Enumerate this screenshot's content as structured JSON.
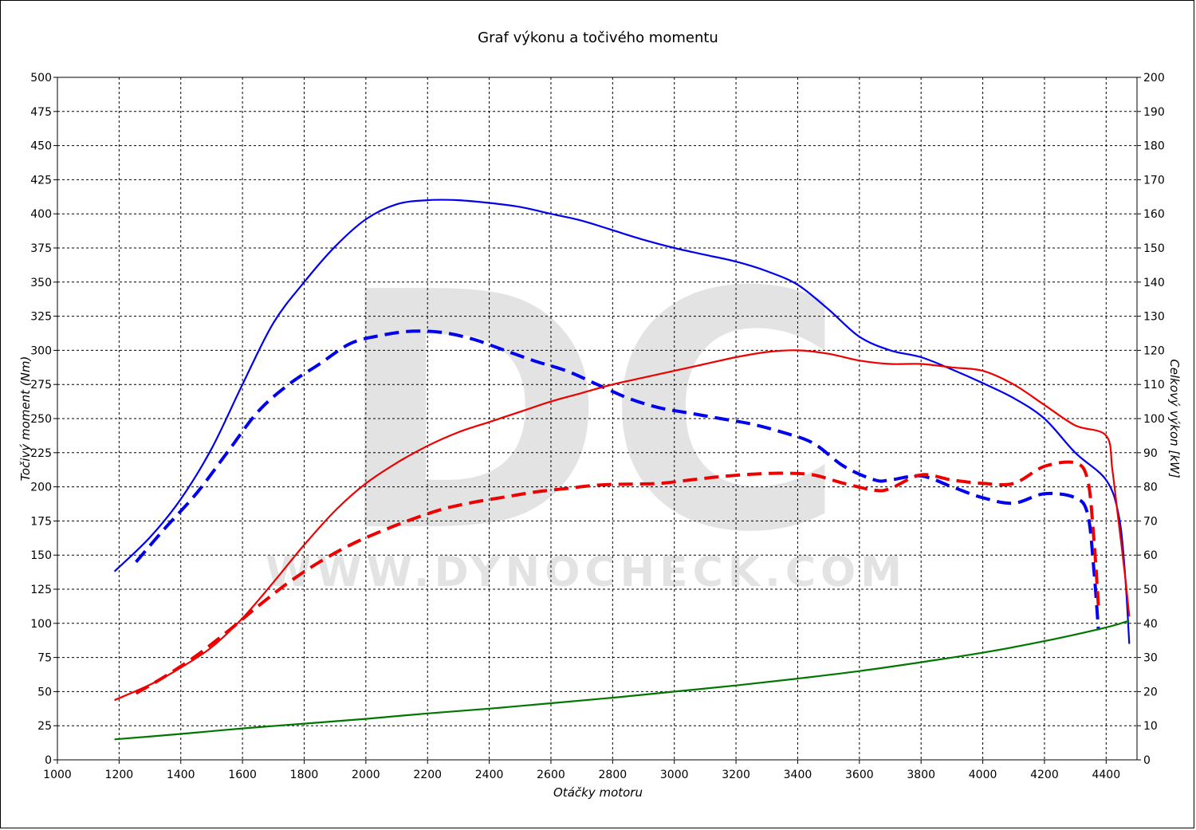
{
  "chart_data": {
    "type": "line",
    "title": "Graf výkonu a točivého momentu",
    "xlabel": "Otáčky motoru",
    "ylabel_left": "Točivý moment (Nm)",
    "ylabel_right": "Celkový výkon [kW]",
    "xlim": [
      1000,
      4500
    ],
    "ylim_left": [
      0,
      500
    ],
    "ylim_right": [
      0,
      200
    ],
    "x_ticks": [
      1000,
      1200,
      1400,
      1600,
      1800,
      2000,
      2200,
      2400,
      2600,
      2800,
      3000,
      3200,
      3400,
      3600,
      3800,
      4000,
      4200,
      4400
    ],
    "y_ticks_left": [
      0,
      25,
      50,
      75,
      100,
      125,
      150,
      175,
      200,
      225,
      250,
      275,
      300,
      325,
      350,
      375,
      400,
      425,
      450,
      475,
      500
    ],
    "y_ticks_right": [
      0,
      10,
      20,
      30,
      40,
      50,
      60,
      70,
      80,
      90,
      100,
      110,
      120,
      130,
      140,
      150,
      160,
      170,
      180,
      190,
      200
    ],
    "grid": true,
    "watermark": {
      "letters": "DC",
      "url": "WWW.DYNOCHECK.COM"
    },
    "series": [
      {
        "axis": "left",
        "color": "#0000ee",
        "dash": "solid",
        "points": [
          [
            1185,
            138
          ],
          [
            1300,
            163
          ],
          [
            1400,
            191
          ],
          [
            1500,
            228
          ],
          [
            1600,
            275
          ],
          [
            1700,
            320
          ],
          [
            1800,
            350
          ],
          [
            1900,
            376
          ],
          [
            2000,
            396
          ],
          [
            2100,
            407
          ],
          [
            2200,
            410
          ],
          [
            2300,
            410
          ],
          [
            2400,
            408
          ],
          [
            2500,
            405
          ],
          [
            2600,
            400
          ],
          [
            2700,
            395
          ],
          [
            2800,
            388
          ],
          [
            2900,
            381
          ],
          [
            3000,
            375
          ],
          [
            3100,
            370
          ],
          [
            3200,
            365
          ],
          [
            3300,
            358
          ],
          [
            3400,
            348
          ],
          [
            3500,
            330
          ],
          [
            3600,
            310
          ],
          [
            3700,
            300
          ],
          [
            3800,
            295
          ],
          [
            3900,
            286
          ],
          [
            4000,
            276
          ],
          [
            4100,
            265
          ],
          [
            4200,
            250
          ],
          [
            4300,
            225
          ],
          [
            4400,
            205
          ],
          [
            4440,
            180
          ],
          [
            4460,
            140
          ],
          [
            4475,
            85
          ]
        ]
      },
      {
        "axis": "left",
        "color": "#0000ee",
        "dash": "dashed",
        "points": [
          [
            1255,
            145
          ],
          [
            1350,
            170
          ],
          [
            1450,
            195
          ],
          [
            1550,
            225
          ],
          [
            1650,
            255
          ],
          [
            1750,
            275
          ],
          [
            1850,
            290
          ],
          [
            1950,
            305
          ],
          [
            2050,
            311
          ],
          [
            2150,
            314
          ],
          [
            2250,
            313
          ],
          [
            2350,
            308
          ],
          [
            2450,
            300
          ],
          [
            2550,
            292
          ],
          [
            2650,
            285
          ],
          [
            2750,
            275
          ],
          [
            2850,
            265
          ],
          [
            2950,
            258
          ],
          [
            3050,
            254
          ],
          [
            3150,
            250
          ],
          [
            3250,
            246
          ],
          [
            3350,
            240
          ],
          [
            3450,
            232
          ],
          [
            3550,
            215
          ],
          [
            3650,
            205
          ],
          [
            3700,
            205
          ],
          [
            3800,
            208
          ],
          [
            3900,
            200
          ],
          [
            4000,
            192
          ],
          [
            4100,
            188
          ],
          [
            4200,
            195
          ],
          [
            4300,
            192
          ],
          [
            4340,
            180
          ],
          [
            4360,
            140
          ],
          [
            4375,
            95
          ]
        ]
      },
      {
        "axis": "right",
        "color": "#ee0000",
        "dash": "solid",
        "points": [
          [
            1185,
            17.5
          ],
          [
            1300,
            22
          ],
          [
            1400,
            27
          ],
          [
            1500,
            33
          ],
          [
            1600,
            41.5
          ],
          [
            1700,
            52
          ],
          [
            1800,
            63
          ],
          [
            1900,
            73
          ],
          [
            2000,
            81
          ],
          [
            2100,
            87
          ],
          [
            2200,
            92
          ],
          [
            2300,
            96
          ],
          [
            2400,
            99
          ],
          [
            2500,
            102
          ],
          [
            2600,
            105
          ],
          [
            2700,
            107.5
          ],
          [
            2800,
            110
          ],
          [
            2900,
            112
          ],
          [
            3000,
            114
          ],
          [
            3100,
            116
          ],
          [
            3200,
            118
          ],
          [
            3300,
            119.5
          ],
          [
            3400,
            120
          ],
          [
            3500,
            119
          ],
          [
            3600,
            117
          ],
          [
            3700,
            116
          ],
          [
            3800,
            116
          ],
          [
            3900,
            115
          ],
          [
            4000,
            114
          ],
          [
            4100,
            110
          ],
          [
            4200,
            104
          ],
          [
            4300,
            98
          ],
          [
            4400,
            95
          ],
          [
            4420,
            85
          ],
          [
            4440,
            70
          ],
          [
            4460,
            55
          ],
          [
            4475,
            42
          ]
        ]
      },
      {
        "axis": "right",
        "color": "#ee0000",
        "dash": "dashed",
        "points": [
          [
            1255,
            19.5
          ],
          [
            1350,
            24.5
          ],
          [
            1450,
            30.5
          ],
          [
            1550,
            37.5
          ],
          [
            1650,
            45
          ],
          [
            1750,
            52
          ],
          [
            1850,
            58
          ],
          [
            1950,
            63
          ],
          [
            2050,
            67
          ],
          [
            2150,
            70.5
          ],
          [
            2250,
            73.5
          ],
          [
            2350,
            75.5
          ],
          [
            2450,
            77
          ],
          [
            2550,
            78.5
          ],
          [
            2650,
            79.5
          ],
          [
            2750,
            80.5
          ],
          [
            2850,
            80.8
          ],
          [
            2950,
            81
          ],
          [
            3050,
            82
          ],
          [
            3150,
            83
          ],
          [
            3250,
            83.7
          ],
          [
            3350,
            84
          ],
          [
            3450,
            83.5
          ],
          [
            3550,
            81
          ],
          [
            3650,
            79
          ],
          [
            3700,
            79.5
          ],
          [
            3800,
            83.5
          ],
          [
            3900,
            82
          ],
          [
            4000,
            81
          ],
          [
            4100,
            81
          ],
          [
            4200,
            86
          ],
          [
            4300,
            87
          ],
          [
            4340,
            82
          ],
          [
            4360,
            65
          ],
          [
            4375,
            45
          ]
        ]
      },
      {
        "axis": "left",
        "color": "#007700",
        "dash": "solid",
        "points": [
          [
            1185,
            15
          ],
          [
            1400,
            19
          ],
          [
            1600,
            23
          ],
          [
            1800,
            26.5
          ],
          [
            2000,
            30
          ],
          [
            2200,
            34
          ],
          [
            2400,
            37.5
          ],
          [
            2600,
            41.5
          ],
          [
            2800,
            45.5
          ],
          [
            3000,
            50
          ],
          [
            3200,
            54.5
          ],
          [
            3400,
            59.5
          ],
          [
            3600,
            65
          ],
          [
            3800,
            71.5
          ],
          [
            4000,
            78.5
          ],
          [
            4200,
            87
          ],
          [
            4400,
            97
          ],
          [
            4475,
            102
          ]
        ]
      }
    ]
  }
}
